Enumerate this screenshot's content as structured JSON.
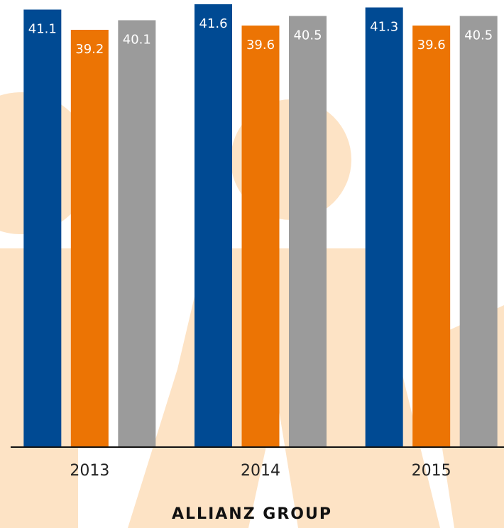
{
  "chart_data": {
    "type": "bar",
    "title": "ALLIANZ GROUP",
    "categories": [
      "2013",
      "2014",
      "2015"
    ],
    "series": [
      {
        "color": "#004a93",
        "values": [
          41.1,
          41.6,
          41.3
        ]
      },
      {
        "color": "#ec7404",
        "values": [
          39.2,
          39.6,
          39.6
        ]
      },
      {
        "color": "#9b9b9b",
        "values": [
          40.1,
          40.5,
          40.5
        ]
      }
    ],
    "ylim": [
      0,
      42
    ]
  }
}
